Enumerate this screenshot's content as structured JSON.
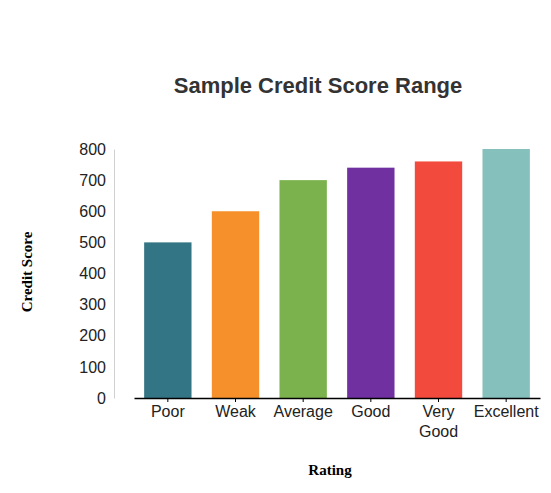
{
  "chart_data": {
    "type": "bar",
    "title": "Sample Credit Score Range",
    "x_label": "Rating",
    "y_label": "Credit Score",
    "categories": [
      "Poor",
      "Weak",
      "Average",
      "Good",
      "Very Good",
      "Excellent"
    ],
    "values": [
      500,
      600,
      700,
      740,
      760,
      800
    ],
    "colors": [
      "#347585",
      "#f5902a",
      "#7bb24e",
      "#7030a0",
      "#f24a3d",
      "#85c0bd"
    ],
    "ylim": [
      0,
      800
    ],
    "yticks": [
      0,
      100,
      200,
      300,
      400,
      500,
      600,
      700,
      800
    ],
    "grid": false
  }
}
